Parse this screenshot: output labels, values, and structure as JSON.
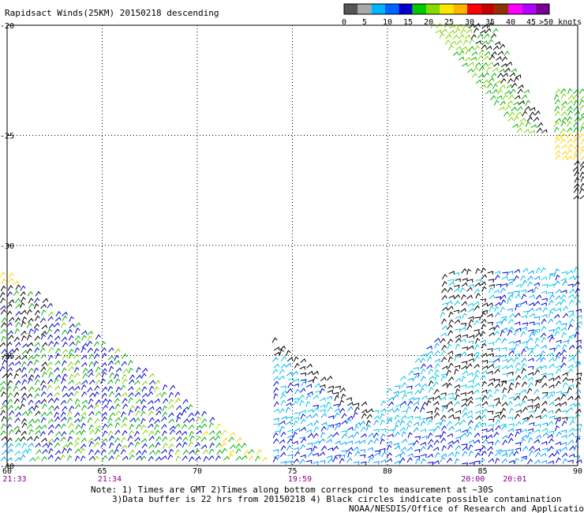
{
  "title": "Rapidsact Winds(25KM) 20150218 descending",
  "colorbar": {
    "segments": [
      "#555555",
      "#a8a8a8",
      "#00b4ff",
      "#0064ff",
      "#0000c8",
      "#00c800",
      "#82dc00",
      "#ffe600",
      "#ffb400",
      "#ff0000",
      "#c80000",
      "#8c3200",
      "#ff00ff",
      "#b400ff",
      "#780096"
    ],
    "labels": [
      "0",
      "5",
      "10",
      "15",
      "20",
      "25",
      "30",
      "35",
      "40",
      "45",
      ">50 knots"
    ]
  },
  "chart_data": {
    "type": "wind-barb-map",
    "x_ticks": [
      "60",
      "65",
      "70",
      "75",
      "80",
      "85",
      "90"
    ],
    "y_ticks": [
      "-20",
      "-25",
      "-30",
      "-35",
      "-40"
    ],
    "xlim": [
      60,
      90
    ],
    "ylim": [
      -40,
      -20
    ],
    "grid": true,
    "time_labels": [
      {
        "lon": 60.1,
        "text": "21:33"
      },
      {
        "lon": 65.1,
        "text": "21:34"
      },
      {
        "lon": 75.1,
        "text": "19:59"
      },
      {
        "lon": 84.2,
        "text": "20:00"
      },
      {
        "lon": 86.4,
        "text": "20:01"
      }
    ],
    "swaths": [
      {
        "name": "",
        "lon_range": [
          60,
          74
        ],
        "lat_range": [
          -40,
          -33.5
        ],
        "speed_knots": [
          8,
          20
        ]
      },
      {
        "name": "",
        "lon_range": [
          74,
          90
        ],
        "lat_range": [
          -40,
          -31.5
        ],
        "speed_knots": [
          3,
          18
        ]
      },
      {
        "name": "",
        "lon_range": [
          82,
          87.5
        ],
        "lat_range": [
          -25.3,
          -20
        ],
        "speed_knots": [
          3,
          20
        ]
      },
      {
        "name": "",
        "lon_range": [
          88.5,
          90
        ],
        "lat_range": [
          -28,
          -23
        ],
        "speed_knots": [
          3,
          25
        ]
      }
    ]
  },
  "notes": {
    "line1": "Note: 1) Times are GMT 2)Times along bottom correspond to measurement at ~30S",
    "line2": "3)Data buffer is 22 hrs from 20150218 4) Black circles indicate possible contamination",
    "line3": "NOAA/NESDIS/Office of Research and Applications"
  }
}
